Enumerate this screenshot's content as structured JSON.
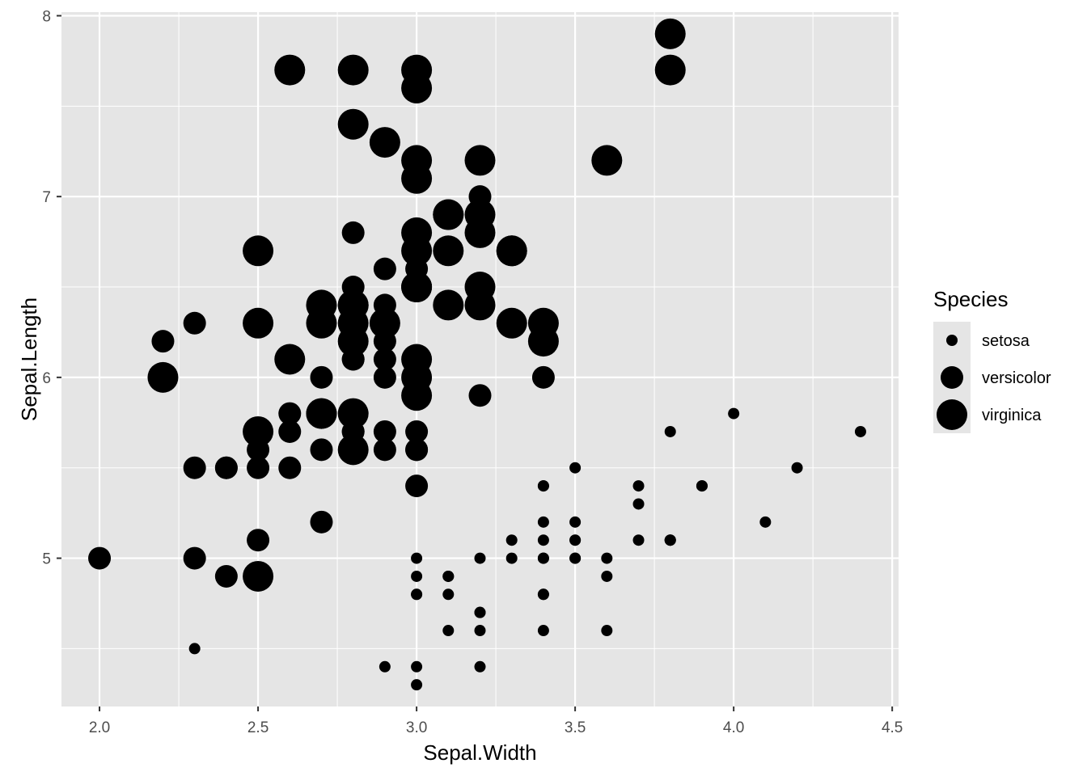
{
  "chart_data": {
    "type": "scatter",
    "title": "",
    "xlabel": "Sepal.Width",
    "ylabel": "Sepal.Length",
    "xlim": [
      1.88,
      4.52
    ],
    "ylim": [
      4.18,
      8.02
    ],
    "x_ticks": [
      2.0,
      2.5,
      3.0,
      3.5,
      4.0,
      4.5
    ],
    "x_tick_labels": [
      "2.0",
      "2.5",
      "3.0",
      "3.5",
      "4.0",
      "4.5"
    ],
    "y_ticks": [
      5,
      6,
      7,
      8
    ],
    "y_tick_labels": [
      "5",
      "6",
      "7",
      "8"
    ],
    "grid": true,
    "panel_background": "#e5e5e5",
    "grid_color": "#ffffff",
    "point_color": "#000000",
    "size_aesthetic": "Species",
    "legend": {
      "title": "Species",
      "position": "right",
      "entries": [
        "setosa",
        "versicolor",
        "virginica"
      ]
    },
    "series": [
      {
        "name": "setosa",
        "points": [
          [
            3.5,
            5.1
          ],
          [
            3.0,
            4.9
          ],
          [
            3.2,
            4.7
          ],
          [
            3.1,
            4.6
          ],
          [
            3.6,
            5.0
          ],
          [
            3.9,
            5.4
          ],
          [
            3.4,
            4.6
          ],
          [
            3.4,
            5.0
          ],
          [
            2.9,
            4.4
          ],
          [
            3.1,
            4.9
          ],
          [
            3.7,
            5.4
          ],
          [
            3.4,
            4.8
          ],
          [
            3.0,
            4.8
          ],
          [
            3.0,
            4.3
          ],
          [
            4.0,
            5.8
          ],
          [
            4.4,
            5.7
          ],
          [
            3.9,
            5.4
          ],
          [
            3.5,
            5.1
          ],
          [
            3.8,
            5.7
          ],
          [
            3.8,
            5.1
          ],
          [
            3.4,
            5.4
          ],
          [
            3.7,
            5.1
          ],
          [
            3.6,
            4.6
          ],
          [
            3.3,
            5.1
          ],
          [
            3.4,
            4.8
          ],
          [
            3.0,
            5.0
          ],
          [
            3.4,
            5.0
          ],
          [
            3.5,
            5.2
          ],
          [
            3.4,
            5.2
          ],
          [
            3.2,
            4.7
          ],
          [
            3.1,
            4.8
          ],
          [
            3.4,
            5.4
          ],
          [
            4.1,
            5.2
          ],
          [
            4.2,
            5.5
          ],
          [
            3.1,
            4.9
          ],
          [
            3.2,
            5.0
          ],
          [
            3.5,
            5.5
          ],
          [
            3.6,
            4.9
          ],
          [
            3.0,
            4.4
          ],
          [
            3.4,
            5.1
          ],
          [
            3.5,
            5.0
          ],
          [
            2.3,
            4.5
          ],
          [
            3.2,
            4.4
          ],
          [
            3.5,
            5.0
          ],
          [
            3.8,
            5.1
          ],
          [
            3.0,
            4.8
          ],
          [
            3.8,
            5.1
          ],
          [
            3.2,
            4.6
          ],
          [
            3.7,
            5.3
          ],
          [
            3.3,
            5.0
          ]
        ]
      },
      {
        "name": "versicolor",
        "points": [
          [
            3.2,
            7.0
          ],
          [
            3.2,
            6.4
          ],
          [
            3.1,
            6.9
          ],
          [
            2.3,
            5.5
          ],
          [
            2.8,
            6.5
          ],
          [
            2.8,
            5.7
          ],
          [
            3.3,
            6.3
          ],
          [
            2.4,
            4.9
          ],
          [
            2.9,
            6.6
          ],
          [
            2.7,
            5.2
          ],
          [
            2.0,
            5.0
          ],
          [
            3.0,
            5.9
          ],
          [
            2.2,
            6.0
          ],
          [
            2.9,
            6.1
          ],
          [
            2.9,
            5.6
          ],
          [
            3.1,
            6.7
          ],
          [
            3.0,
            5.6
          ],
          [
            2.7,
            5.8
          ],
          [
            2.2,
            6.2
          ],
          [
            2.5,
            5.6
          ],
          [
            3.2,
            5.9
          ],
          [
            2.8,
            6.1
          ],
          [
            2.5,
            6.3
          ],
          [
            2.8,
            6.1
          ],
          [
            2.9,
            6.4
          ],
          [
            3.0,
            6.6
          ],
          [
            2.8,
            6.8
          ],
          [
            3.0,
            6.7
          ],
          [
            2.9,
            6.0
          ],
          [
            2.6,
            5.7
          ],
          [
            2.4,
            5.5
          ],
          [
            2.4,
            5.5
          ],
          [
            2.7,
            5.8
          ],
          [
            2.7,
            6.0
          ],
          [
            3.0,
            5.4
          ],
          [
            3.4,
            6.0
          ],
          [
            3.1,
            6.7
          ],
          [
            2.3,
            6.3
          ],
          [
            3.0,
            5.6
          ],
          [
            2.5,
            5.5
          ],
          [
            2.6,
            5.5
          ],
          [
            3.0,
            6.1
          ],
          [
            2.6,
            5.8
          ],
          [
            2.3,
            5.0
          ],
          [
            2.7,
            5.6
          ],
          [
            3.0,
            5.7
          ],
          [
            2.9,
            5.7
          ],
          [
            2.9,
            6.2
          ],
          [
            2.5,
            5.1
          ],
          [
            2.8,
            5.7
          ]
        ]
      },
      {
        "name": "virginica",
        "points": [
          [
            3.3,
            6.3
          ],
          [
            2.7,
            5.8
          ],
          [
            3.0,
            7.1
          ],
          [
            2.9,
            6.3
          ],
          [
            3.0,
            6.5
          ],
          [
            3.0,
            7.6
          ],
          [
            2.5,
            4.9
          ],
          [
            2.9,
            7.3
          ],
          [
            2.5,
            6.7
          ],
          [
            3.6,
            7.2
          ],
          [
            3.2,
            6.5
          ],
          [
            2.7,
            6.4
          ],
          [
            3.0,
            6.8
          ],
          [
            2.5,
            5.7
          ],
          [
            2.8,
            5.8
          ],
          [
            3.2,
            6.4
          ],
          [
            3.0,
            6.5
          ],
          [
            3.8,
            7.7
          ],
          [
            2.6,
            7.7
          ],
          [
            2.2,
            6.0
          ],
          [
            3.2,
            6.9
          ],
          [
            2.8,
            5.6
          ],
          [
            2.8,
            7.7
          ],
          [
            2.7,
            6.3
          ],
          [
            3.3,
            6.7
          ],
          [
            3.2,
            7.2
          ],
          [
            2.8,
            6.2
          ],
          [
            3.0,
            6.1
          ],
          [
            2.8,
            6.4
          ],
          [
            3.0,
            7.2
          ],
          [
            2.8,
            7.4
          ],
          [
            3.8,
            7.9
          ],
          [
            2.8,
            6.4
          ],
          [
            2.8,
            6.3
          ],
          [
            2.6,
            6.1
          ],
          [
            3.0,
            7.7
          ],
          [
            3.4,
            6.3
          ],
          [
            3.1,
            6.4
          ],
          [
            3.0,
            6.0
          ],
          [
            3.1,
            6.9
          ],
          [
            3.1,
            6.7
          ],
          [
            3.1,
            6.9
          ],
          [
            2.7,
            5.8
          ],
          [
            3.2,
            6.8
          ],
          [
            3.3,
            6.7
          ],
          [
            3.0,
            6.7
          ],
          [
            2.5,
            6.3
          ],
          [
            3.0,
            6.5
          ],
          [
            3.4,
            6.2
          ],
          [
            3.0,
            5.9
          ]
        ]
      }
    ]
  }
}
